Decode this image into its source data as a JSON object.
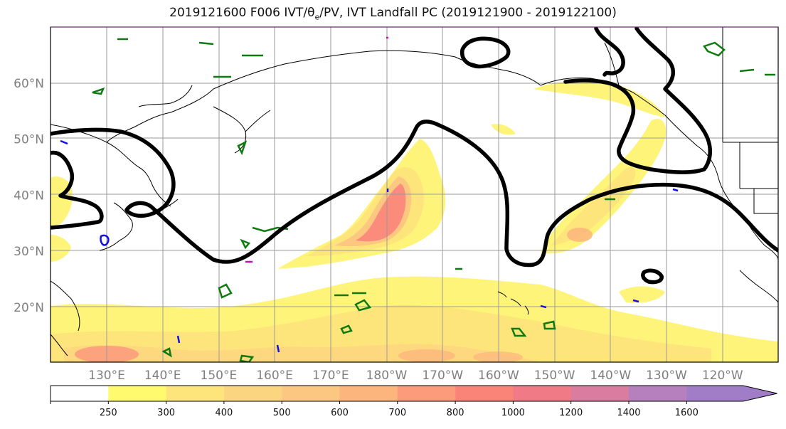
{
  "title": "2019121600 F006 IVT/θe/PV, IVT Landfall PC (2019121900 - 2019122100)",
  "lat_labels": [
    {
      "text": "60°N",
      "lat": 60
    },
    {
      "text": "50°N",
      "lat": 50
    },
    {
      "text": "40°N",
      "lat": 40
    },
    {
      "text": "30°N",
      "lat": 30
    },
    {
      "text": "20°N",
      "lat": 20
    }
  ],
  "lon_labels": [
    {
      "text": "130°E",
      "lon": 130
    },
    {
      "text": "140°E",
      "lon": 140
    },
    {
      "text": "150°E",
      "lon": 150
    },
    {
      "text": "160°E",
      "lon": 160
    },
    {
      "text": "170°E",
      "lon": 170
    },
    {
      "text": "180°W",
      "lon": 180
    },
    {
      "text": "170°W",
      "lon": 190
    },
    {
      "text": "160°W",
      "lon": 200
    },
    {
      "text": "150°W",
      "lon": 210
    },
    {
      "text": "140°W",
      "lon": 220
    },
    {
      "text": "130°W",
      "lon": 230
    },
    {
      "text": "120°W",
      "lon": 240
    }
  ],
  "colorbar": {
    "levels": [
      "250",
      "300",
      "400",
      "500",
      "600",
      "700",
      "800",
      "1000",
      "1200",
      "1400",
      "1600"
    ],
    "colors": [
      "#ffffff",
      "#fffa6e",
      "#fde57c",
      "#fcd580",
      "#fcc780",
      "#fcb67d",
      "#fc9a7c",
      "#fb8479",
      "#f07a86",
      "#d97c9f",
      "#b67fbd",
      "#a17dc8"
    ]
  },
  "colors": {
    "ivt_fill_light": "#fff47a",
    "ivt_fill_mid": "#fdd582",
    "ivt_fill_high": "#fb8c79",
    "landfall_pc": "#000000",
    "theta_e": "#0f7a0f",
    "pv": "#1010e0",
    "coast": "#000000",
    "grid": "#9a9a9a"
  }
}
